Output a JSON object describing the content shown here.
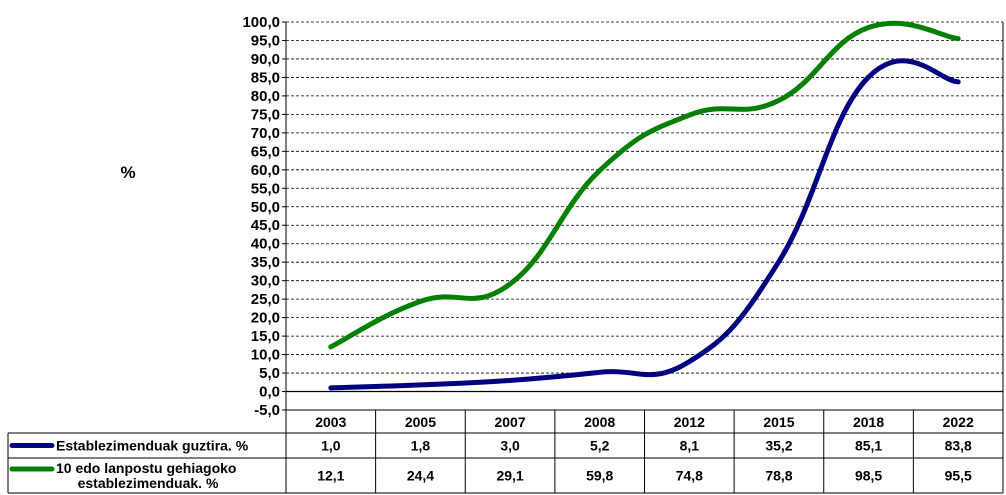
{
  "chart_data": {
    "type": "line",
    "ylabel": "%",
    "ylim": [
      -5,
      100
    ],
    "y_ticks": [
      "100,0",
      "95,0",
      "90,0",
      "85,0",
      "80,0",
      "75,0",
      "70,0",
      "65,0",
      "60,0",
      "55,0",
      "50,0",
      "45,0",
      "40,0",
      "35,0",
      "30,0",
      "25,0",
      "20,0",
      "15,0",
      "10,0",
      "5,0",
      "0,0",
      "-5,0"
    ],
    "grid": true,
    "legend": "data-table",
    "categories": [
      "2003",
      "2005",
      "2007",
      "2008",
      "2012",
      "2015",
      "2018",
      "2022"
    ],
    "series": [
      {
        "name": "Establezimenduak guztira. %",
        "color": "#000080",
        "values": [
          1.0,
          1.8,
          3.0,
          5.2,
          8.1,
          35.2,
          85.1,
          83.8
        ],
        "labels": [
          "1,0",
          "1,8",
          "3,0",
          "5,2",
          "8,1",
          "35,2",
          "85,1",
          "83,8"
        ]
      },
      {
        "name": "10 edo lanpostu gehiagoko establezimenduak. %",
        "name_lines": [
          "10 edo lanpostu gehiagoko",
          "establezimenduak. %"
        ],
        "color": "#008000",
        "values": [
          12.1,
          24.4,
          29.1,
          59.8,
          74.8,
          78.8,
          98.5,
          95.5
        ],
        "labels": [
          "12,1",
          "24,4",
          "29,1",
          "59,8",
          "74,8",
          "78,8",
          "98,5",
          "95,5"
        ]
      }
    ]
  }
}
